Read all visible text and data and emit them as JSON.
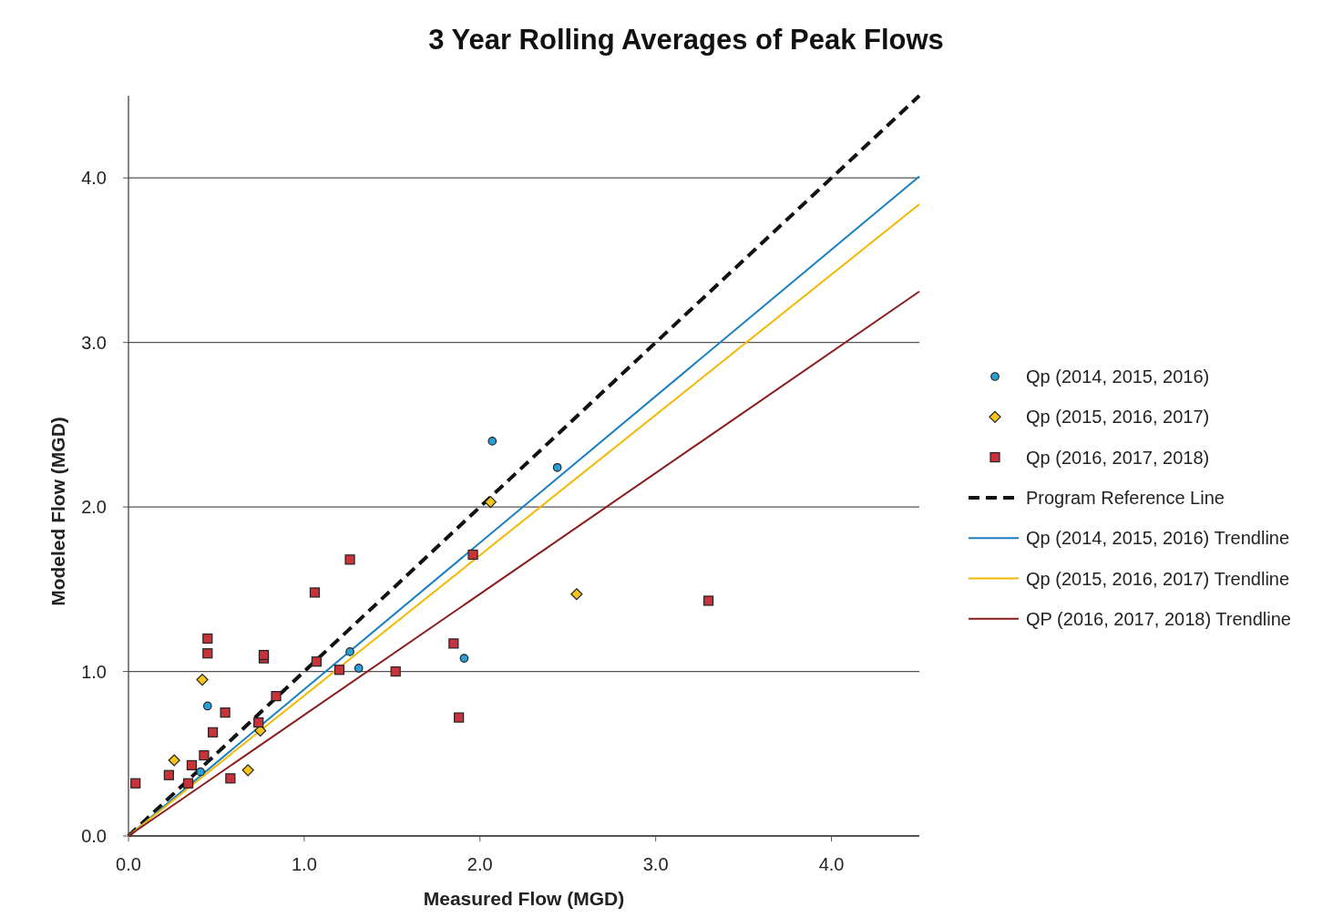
{
  "chart_data": {
    "type": "scatter",
    "title": "3 Year Rolling Averages of Peak Flows",
    "xlabel": "Measured Flow (MGD)",
    "ylabel": "Modeled Flow (MGD)",
    "xlim": [
      0,
      4.5
    ],
    "ylim": [
      0,
      4.5
    ],
    "xticks": [
      {
        "value": 0,
        "label": "0.0"
      },
      {
        "value": 1,
        "label": "1.0"
      },
      {
        "value": 2,
        "label": "2.0"
      },
      {
        "value": 3,
        "label": "3.0"
      },
      {
        "value": 4,
        "label": "4.0"
      }
    ],
    "yticks": [
      {
        "value": 0,
        "label": "0.0"
      },
      {
        "value": 1,
        "label": "1.0"
      },
      {
        "value": 2,
        "label": "2.0"
      },
      {
        "value": 3,
        "label": "3.0"
      },
      {
        "value": 4,
        "label": "4.0"
      }
    ],
    "grid": "y",
    "legend": "right",
    "series": [
      {
        "name": "Qp (2014, 2015, 2016)",
        "marker": "circle",
        "color": "#2a9fd6",
        "x": [
          2.07,
          2.44,
          1.26,
          1.31,
          1.91,
          0.45,
          0.41
        ],
        "values": [
          2.4,
          2.24,
          1.12,
          1.02,
          1.08,
          0.79,
          0.39
        ]
      },
      {
        "name": "Qp (2015, 2016, 2017)",
        "marker": "diamond",
        "color": "#f5c518",
        "x": [
          0.26,
          0.42,
          0.68,
          2.06,
          2.55,
          0.75
        ],
        "values": [
          0.46,
          0.95,
          0.4,
          2.03,
          1.47,
          0.64
        ]
      },
      {
        "name": "Qp (2016, 2017, 2018)",
        "marker": "square",
        "color": "#c8323a",
        "x": [
          0.04,
          0.23,
          0.34,
          0.36,
          0.43,
          0.48,
          0.58,
          0.55,
          0.45,
          0.45,
          0.77,
          0.77,
          0.84,
          0.74,
          1.06,
          1.26,
          1.07,
          1.2,
          1.52,
          1.85,
          1.88,
          1.96,
          3.3
        ],
        "values": [
          0.32,
          0.37,
          0.32,
          0.43,
          0.49,
          0.63,
          0.35,
          0.75,
          1.2,
          1.11,
          1.08,
          1.1,
          0.85,
          0.69,
          1.48,
          1.68,
          1.06,
          1.01,
          1.0,
          1.17,
          0.72,
          1.71,
          1.43
        ]
      },
      {
        "name": "Program Reference Line",
        "type": "line",
        "marker": "none",
        "line_style": "dashed",
        "color": "#111111",
        "x": [
          0,
          4.5
        ],
        "values": [
          0,
          4.5
        ]
      },
      {
        "name": "Qp (2014, 2015, 2016) Trendline",
        "type": "line",
        "marker": "none",
        "line_style": "solid",
        "color": "#1a7fc0",
        "x": [
          0,
          4.5
        ],
        "values": [
          0,
          4.01
        ]
      },
      {
        "name": "Qp (2015, 2016, 2017) Trendline",
        "type": "line",
        "marker": "none",
        "line_style": "solid",
        "color": "#f2b800",
        "x": [
          0,
          4.5
        ],
        "values": [
          0,
          3.84
        ]
      },
      {
        "name": "QP (2016, 2017, 2018) Trendline",
        "type": "line",
        "marker": "none",
        "line_style": "solid",
        "color": "#8b1a1a",
        "x": [
          0,
          4.5
        ],
        "values": [
          0,
          3.31
        ]
      }
    ]
  }
}
